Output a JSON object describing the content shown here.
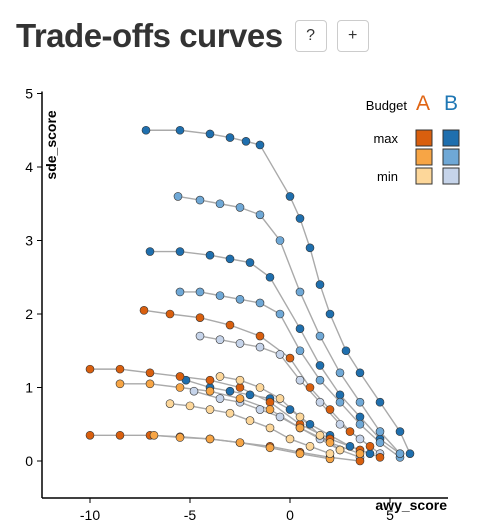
{
  "header": {
    "title": "Trade-offs curves",
    "help_label": "?",
    "add_label": "+"
  },
  "chart_data": {
    "type": "scatter",
    "title": "",
    "xlabel": "awy_score",
    "ylabel": "sde_score",
    "xlim": [
      -12.5,
      8
    ],
    "ylim": [
      -0.5,
      5
    ],
    "x_ticks": [
      -10,
      -5,
      0,
      5
    ],
    "y_ticks": [
      0,
      1,
      2,
      3,
      4,
      5
    ],
    "grid": false,
    "legend": {
      "title": "Budget",
      "groups": [
        {
          "name": "A",
          "color": "#e06412"
        },
        {
          "name": "B",
          "color": "#1f77b4"
        }
      ],
      "levels": [
        "max",
        "",
        "min"
      ],
      "position": "top-right"
    },
    "colors": {
      "A_max": "#d95f0e",
      "A_mid": "#f7a545",
      "A_min": "#fdd79a",
      "B_max": "#1f6fae",
      "B_mid": "#6fa8d6",
      "B_min": "#c6d4ea",
      "line": "#aaaaaa"
    },
    "series": [
      {
        "group": "B",
        "level": "max",
        "points": [
          [
            -7.2,
            4.5
          ],
          [
            -5.5,
            4.5
          ],
          [
            -4.0,
            4.45
          ],
          [
            -3.0,
            4.4
          ],
          [
            -2.2,
            4.35
          ],
          [
            -1.5,
            4.3
          ],
          [
            0.0,
            3.6
          ],
          [
            0.5,
            3.3
          ],
          [
            1.0,
            2.9
          ],
          [
            1.5,
            2.4
          ],
          [
            2.0,
            2.0
          ],
          [
            2.8,
            1.5
          ],
          [
            3.5,
            1.2
          ],
          [
            4.5,
            0.8
          ],
          [
            5.5,
            0.4
          ],
          [
            6.0,
            0.1
          ]
        ]
      },
      {
        "group": "B",
        "level": "max",
        "points": [
          [
            -7.0,
            2.85
          ],
          [
            -5.5,
            2.85
          ],
          [
            -4.0,
            2.8
          ],
          [
            -3.0,
            2.75
          ],
          [
            -2.0,
            2.7
          ],
          [
            -1.0,
            2.5
          ],
          [
            0.5,
            1.8
          ],
          [
            1.5,
            1.3
          ],
          [
            2.5,
            0.9
          ],
          [
            3.5,
            0.6
          ],
          [
            4.5,
            0.3
          ],
          [
            5.5,
            0.1
          ]
        ]
      },
      {
        "group": "B",
        "level": "max",
        "points": [
          [
            -5.2,
            1.1
          ],
          [
            -4.0,
            1.0
          ],
          [
            -3.0,
            0.95
          ],
          [
            -2.0,
            0.9
          ],
          [
            -1.0,
            0.85
          ],
          [
            0.0,
            0.7
          ],
          [
            1.0,
            0.5
          ],
          [
            2.0,
            0.35
          ],
          [
            3.0,
            0.2
          ],
          [
            4.0,
            0.1
          ]
        ]
      },
      {
        "group": "B",
        "level": "mid",
        "points": [
          [
            -5.5,
            2.3
          ],
          [
            -4.5,
            2.3
          ],
          [
            -3.5,
            2.25
          ],
          [
            -2.5,
            2.2
          ],
          [
            -1.5,
            2.15
          ],
          [
            -0.5,
            2.0
          ],
          [
            0.5,
            1.5
          ],
          [
            1.5,
            1.1
          ],
          [
            2.5,
            0.8
          ],
          [
            3.5,
            0.5
          ],
          [
            4.5,
            0.25
          ],
          [
            5.5,
            0.05
          ]
        ]
      },
      {
        "group": "B",
        "level": "mid",
        "points": [
          [
            -5.6,
            3.6
          ],
          [
            -4.5,
            3.55
          ],
          [
            -3.5,
            3.5
          ],
          [
            -2.5,
            3.45
          ],
          [
            -1.5,
            3.35
          ],
          [
            -0.5,
            3.0
          ],
          [
            0.5,
            2.3
          ],
          [
            1.5,
            1.7
          ],
          [
            2.5,
            1.2
          ],
          [
            3.5,
            0.8
          ],
          [
            4.5,
            0.4
          ],
          [
            5.5,
            0.1
          ]
        ]
      },
      {
        "group": "B",
        "level": "min",
        "points": [
          [
            -4.5,
            1.7
          ],
          [
            -3.5,
            1.65
          ],
          [
            -2.5,
            1.6
          ],
          [
            -1.5,
            1.55
          ],
          [
            -0.5,
            1.45
          ],
          [
            0.5,
            1.1
          ],
          [
            1.5,
            0.8
          ],
          [
            2.5,
            0.5
          ],
          [
            3.5,
            0.3
          ],
          [
            4.5,
            0.1
          ]
        ]
      },
      {
        "group": "B",
        "level": "min",
        "points": [
          [
            -4.8,
            0.95
          ],
          [
            -3.5,
            0.85
          ],
          [
            -2.5,
            0.8
          ],
          [
            -1.5,
            0.7
          ],
          [
            -0.5,
            0.6
          ],
          [
            0.5,
            0.45
          ],
          [
            1.5,
            0.3
          ],
          [
            2.5,
            0.15
          ],
          [
            3.5,
            0.05
          ]
        ]
      },
      {
        "group": "A",
        "level": "max",
        "points": [
          [
            -10.0,
            1.25
          ],
          [
            -8.5,
            1.25
          ],
          [
            -7.0,
            1.2
          ],
          [
            -5.5,
            1.15
          ],
          [
            -4.0,
            1.1
          ],
          [
            -2.5,
            1.0
          ],
          [
            -1.0,
            0.8
          ],
          [
            0.5,
            0.5
          ],
          [
            2.0,
            0.3
          ],
          [
            3.5,
            0.15
          ],
          [
            4.5,
            0.05
          ]
        ]
      },
      {
        "group": "A",
        "level": "max",
        "points": [
          [
            -10.0,
            0.35
          ],
          [
            -8.5,
            0.35
          ],
          [
            -7.0,
            0.35
          ],
          [
            -5.5,
            0.33
          ],
          [
            -4.0,
            0.3
          ],
          [
            -2.5,
            0.25
          ],
          [
            -1.0,
            0.2
          ],
          [
            0.5,
            0.12
          ],
          [
            2.0,
            0.05
          ],
          [
            3.5,
            0.0
          ]
        ]
      },
      {
        "group": "A",
        "level": "max",
        "points": [
          [
            -7.3,
            2.05
          ],
          [
            -6.0,
            2.0
          ],
          [
            -4.5,
            1.95
          ],
          [
            -3.0,
            1.85
          ],
          [
            -1.5,
            1.7
          ],
          [
            0.0,
            1.4
          ],
          [
            1.0,
            1.0
          ],
          [
            2.0,
            0.7
          ],
          [
            3.0,
            0.4
          ],
          [
            4.0,
            0.2
          ]
        ]
      },
      {
        "group": "A",
        "level": "mid",
        "points": [
          [
            -8.5,
            1.05
          ],
          [
            -7.0,
            1.05
          ],
          [
            -5.5,
            1.0
          ],
          [
            -4.0,
            0.95
          ],
          [
            -2.5,
            0.85
          ],
          [
            -1.0,
            0.7
          ],
          [
            0.5,
            0.45
          ],
          [
            2.0,
            0.25
          ],
          [
            3.5,
            0.1
          ]
        ]
      },
      {
        "group": "A",
        "level": "mid",
        "points": [
          [
            -6.8,
            0.35
          ],
          [
            -5.5,
            0.32
          ],
          [
            -4.0,
            0.3
          ],
          [
            -2.5,
            0.25
          ],
          [
            -1.0,
            0.18
          ],
          [
            0.5,
            0.1
          ],
          [
            2.0,
            0.03
          ]
        ]
      },
      {
        "group": "A",
        "level": "min",
        "points": [
          [
            -6.0,
            0.78
          ],
          [
            -5.0,
            0.75
          ],
          [
            -4.0,
            0.7
          ],
          [
            -3.0,
            0.65
          ],
          [
            -2.0,
            0.55
          ],
          [
            -1.0,
            0.45
          ],
          [
            0.0,
            0.3
          ],
          [
            1.0,
            0.2
          ],
          [
            2.0,
            0.1
          ]
        ]
      },
      {
        "group": "A",
        "level": "min",
        "points": [
          [
            -3.5,
            1.15
          ],
          [
            -2.5,
            1.1
          ],
          [
            -1.5,
            1.0
          ],
          [
            -0.5,
            0.85
          ],
          [
            0.5,
            0.6
          ],
          [
            1.5,
            0.35
          ],
          [
            2.5,
            0.15
          ]
        ]
      }
    ]
  }
}
